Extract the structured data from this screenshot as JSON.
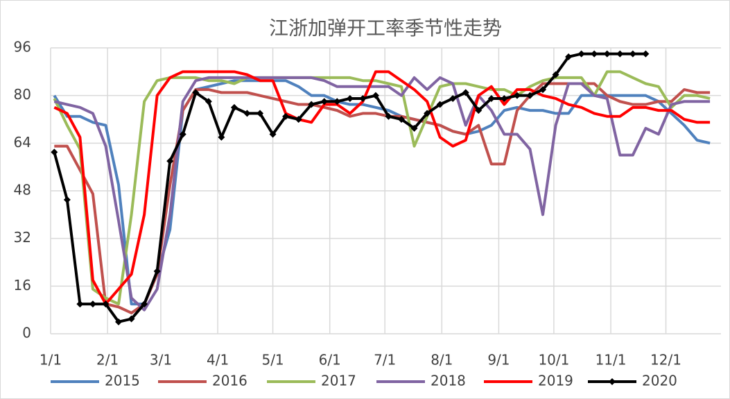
{
  "chart_data": {
    "type": "line",
    "title": "江浙加弹开工率季节性走势",
    "x": [
      2,
      9,
      16,
      23,
      30,
      37,
      44,
      51,
      58,
      65,
      72,
      79,
      86,
      93,
      100,
      107,
      114,
      121,
      128,
      135,
      142,
      149,
      156,
      163,
      170,
      177,
      184,
      191,
      198,
      205,
      212,
      219,
      226,
      233,
      240,
      247,
      254,
      261,
      268,
      275,
      282,
      289,
      296,
      303,
      310,
      317,
      324,
      331,
      338,
      345,
      352,
      359
    ],
    "xlim": [
      0,
      365
    ],
    "ylim": [
      0,
      96
    ],
    "xticks": [
      {
        "value": 0,
        "label": "1/1"
      },
      {
        "value": 31,
        "label": "2/1"
      },
      {
        "value": 60,
        "label": "3/1"
      },
      {
        "value": 91,
        "label": "4/1"
      },
      {
        "value": 121,
        "label": "5/1"
      },
      {
        "value": 152,
        "label": "6/1"
      },
      {
        "value": 182,
        "label": "7/1"
      },
      {
        "value": 213,
        "label": "8/1"
      },
      {
        "value": 244,
        "label": "9/1"
      },
      {
        "value": 274,
        "label": "10/1"
      },
      {
        "value": 305,
        "label": "11/1"
      },
      {
        "value": 335,
        "label": "12/1"
      }
    ],
    "yticks": [
      0,
      16,
      32,
      48,
      64,
      80,
      96
    ],
    "grid": true,
    "series": [
      {
        "name": "2015",
        "color": "#4f81bd",
        "values": [
          80,
          73,
          73,
          71,
          70,
          50,
          10,
          10,
          20,
          35,
          75,
          82,
          83,
          84,
          85,
          85,
          85,
          85,
          85,
          83,
          80,
          80,
          78,
          77,
          77,
          76,
          75,
          73,
          72,
          71,
          70,
          68,
          67,
          68,
          70,
          75,
          76,
          75,
          75,
          74,
          74,
          80,
          80,
          80,
          80,
          80,
          80,
          78,
          74,
          70,
          65,
          64
        ]
      },
      {
        "name": "2016",
        "color": "#c0504d",
        "values": [
          63,
          63,
          55,
          47,
          10,
          9,
          7,
          10,
          20,
          50,
          75,
          82,
          82,
          81,
          81,
          81,
          80,
          79,
          78,
          77,
          77,
          76,
          75,
          73,
          74,
          74,
          73,
          73,
          72,
          71,
          70,
          68,
          67,
          70,
          57,
          57,
          75,
          80,
          84,
          84,
          84,
          84,
          84,
          80,
          78,
          77,
          77,
          78,
          78,
          82,
          81,
          81
        ]
      },
      {
        "name": "2017",
        "color": "#9bbb59",
        "values": [
          79,
          70,
          62,
          15,
          12,
          10,
          40,
          78,
          85,
          86,
          86,
          86,
          85,
          85,
          84,
          86,
          86,
          86,
          86,
          86,
          86,
          86,
          86,
          86,
          85,
          85,
          84,
          83,
          63,
          73,
          83,
          84,
          84,
          83,
          82,
          82,
          80,
          83,
          85,
          86,
          86,
          86,
          80,
          88,
          88,
          86,
          84,
          83,
          76,
          80,
          80,
          79
        ]
      },
      {
        "name": "2018",
        "color": "#8064a2",
        "values": [
          78,
          77,
          76,
          74,
          63,
          38,
          12,
          8,
          15,
          40,
          78,
          85,
          86,
          86,
          86,
          86,
          86,
          86,
          86,
          86,
          86,
          85,
          83,
          83,
          83,
          83,
          83,
          80,
          86,
          82,
          86,
          84,
          70,
          80,
          75,
          67,
          67,
          62,
          40,
          70,
          84,
          84,
          80,
          79,
          60,
          60,
          69,
          67,
          77,
          78,
          78,
          78
        ]
      },
      {
        "name": "2019",
        "color": "#ff0000",
        "values": [
          76,
          74,
          66,
          18,
          10,
          15,
          20,
          40,
          80,
          86,
          88,
          88,
          88,
          88,
          88,
          87,
          85,
          85,
          74,
          72,
          71,
          77,
          77,
          74,
          78,
          88,
          88,
          85,
          82,
          78,
          66,
          63,
          65,
          80,
          83,
          77,
          82,
          82,
          80,
          79,
          77,
          76,
          74,
          73,
          73,
          76,
          76,
          75,
          75,
          72,
          71,
          71
        ]
      },
      {
        "name": "2020",
        "color": "#000000",
        "values": [
          61,
          45,
          10,
          10,
          10,
          4,
          5,
          10,
          21,
          58,
          67,
          81,
          78,
          66,
          76,
          74,
          74,
          67,
          73,
          72,
          77,
          78,
          78,
          79,
          79,
          80,
          73,
          72,
          69,
          74,
          77,
          79,
          81,
          75,
          79,
          79,
          80,
          80,
          82,
          87,
          93,
          94,
          94,
          94,
          94,
          94,
          94,
          null,
          null,
          null,
          null,
          null
        ]
      }
    ]
  }
}
